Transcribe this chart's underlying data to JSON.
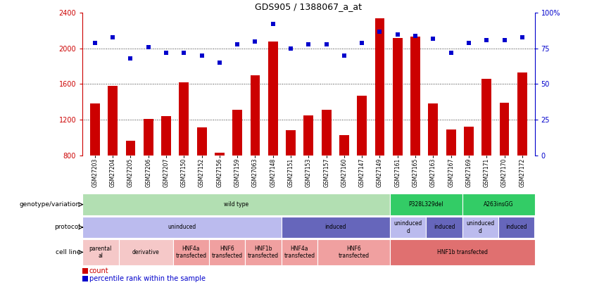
{
  "title": "GDS905 / 1388067_a_at",
  "samples": [
    "GSM27203",
    "GSM27204",
    "GSM27205",
    "GSM27206",
    "GSM27207",
    "GSM27150",
    "GSM27152",
    "GSM27156",
    "GSM27159",
    "GSM27063",
    "GSM27148",
    "GSM27151",
    "GSM27153",
    "GSM27157",
    "GSM27160",
    "GSM27147",
    "GSM27149",
    "GSM27161",
    "GSM27165",
    "GSM27163",
    "GSM27167",
    "GSM27169",
    "GSM27171",
    "GSM27170",
    "GSM27172"
  ],
  "counts": [
    1380,
    1580,
    960,
    1210,
    1240,
    1620,
    1110,
    830,
    1310,
    1700,
    2080,
    1080,
    1250,
    1310,
    1030,
    1470,
    2340,
    2120,
    2130,
    1380,
    1090,
    1120,
    1660,
    1390,
    1730
  ],
  "percentiles": [
    79,
    83,
    68,
    76,
    72,
    72,
    70,
    65,
    78,
    80,
    92,
    75,
    78,
    78,
    70,
    79,
    87,
    85,
    84,
    82,
    72,
    79,
    81,
    81,
    83
  ],
  "ylim_left": [
    800,
    2400
  ],
  "ylim_right": [
    0,
    100
  ],
  "yticks_left": [
    800,
    1200,
    1600,
    2000,
    2400
  ],
  "yticks_right": [
    0,
    25,
    50,
    75,
    100
  ],
  "bar_color": "#cc0000",
  "dot_color": "#0000cc",
  "background_color": "#ffffff",
  "genotype_row": {
    "label": "genotype/variation",
    "segments": [
      {
        "text": "wild type",
        "start": 0,
        "end": 17,
        "color": "#b2dfb2"
      },
      {
        "text": "P328L329del",
        "start": 17,
        "end": 21,
        "color": "#33cc66"
      },
      {
        "text": "A263insGG",
        "start": 21,
        "end": 25,
        "color": "#33cc66"
      }
    ]
  },
  "protocol_row": {
    "label": "protocol",
    "segments": [
      {
        "text": "uninduced",
        "start": 0,
        "end": 11,
        "color": "#bbbbee"
      },
      {
        "text": "induced",
        "start": 11,
        "end": 17,
        "color": "#6666bb"
      },
      {
        "text": "uninduced\nd",
        "start": 17,
        "end": 19,
        "color": "#bbbbee"
      },
      {
        "text": "induced",
        "start": 19,
        "end": 21,
        "color": "#6666bb"
      },
      {
        "text": "uninduced\nd",
        "start": 21,
        "end": 23,
        "color": "#bbbbee"
      },
      {
        "text": "induced",
        "start": 23,
        "end": 25,
        "color": "#6666bb"
      }
    ]
  },
  "cellline_row": {
    "label": "cell line",
    "segments": [
      {
        "text": "parental\nal",
        "start": 0,
        "end": 2,
        "color": "#f5c8c8"
      },
      {
        "text": "derivative",
        "start": 2,
        "end": 5,
        "color": "#f5c8c8"
      },
      {
        "text": "HNF4a\ntransfected",
        "start": 5,
        "end": 7,
        "color": "#f0a0a0"
      },
      {
        "text": "HNF6\ntransfected",
        "start": 7,
        "end": 9,
        "color": "#f0a0a0"
      },
      {
        "text": "HNF1b\ntransfected",
        "start": 9,
        "end": 11,
        "color": "#f0a0a0"
      },
      {
        "text": "HNF4a\ntransfected",
        "start": 11,
        "end": 13,
        "color": "#f0a0a0"
      },
      {
        "text": "HNF6\ntransfected",
        "start": 13,
        "end": 17,
        "color": "#f0a0a0"
      },
      {
        "text": "HNF1b transfected",
        "start": 17,
        "end": 25,
        "color": "#e07070"
      }
    ]
  },
  "legend_items": [
    {
      "marker": "s",
      "color": "#cc0000",
      "label": "count"
    },
    {
      "marker": "s",
      "color": "#0000cc",
      "label": "percentile rank within the sample"
    }
  ]
}
